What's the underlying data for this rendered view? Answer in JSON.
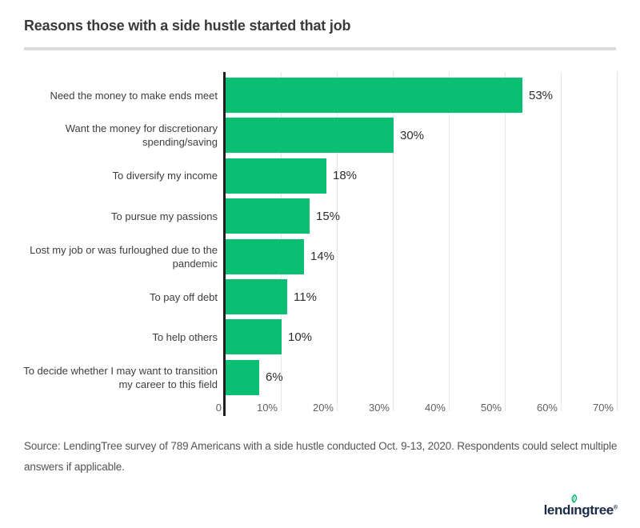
{
  "header": {
    "title": "Reasons those with a side hustle started that job"
  },
  "chart_data": {
    "type": "bar",
    "orientation": "horizontal",
    "title": "Reasons those with a side hustle started that job",
    "categories": [
      "Need the money to make ends meet",
      "Want the money for discretionary spending/saving",
      "To diversify my income",
      "To pursue my passions",
      "Lost my job or was furloughed due to the pandemic",
      "To pay off debt",
      "To help others",
      "To decide whether I may want to transition my career to this field"
    ],
    "values": [
      53,
      30,
      18,
      15,
      14,
      11,
      10,
      6
    ],
    "value_labels": [
      "53%",
      "30%",
      "18%",
      "15%",
      "14%",
      "11%",
      "10%",
      "6%"
    ],
    "xlabel": "",
    "ylabel": "",
    "x_axis": {
      "max": 70,
      "grid": true,
      "ticks": [
        {
          "v": 0,
          "label": "0"
        },
        {
          "v": 10,
          "label": "10%"
        },
        {
          "v": 20,
          "label": "20%"
        },
        {
          "v": 30,
          "label": "30%"
        },
        {
          "v": 40,
          "label": "40%"
        },
        {
          "v": 50,
          "label": "50%"
        },
        {
          "v": 60,
          "label": "60%"
        },
        {
          "v": 70,
          "label": "70%"
        }
      ]
    },
    "bar_color": "#0abf73",
    "legend": "none"
  },
  "footer": {
    "source_text": "Source: LendingTree survey of 789 Americans with a side hustle conducted Oct. 9-13, 2020. Respondents could select multiple answers if applicable.",
    "logo": {
      "pre": "lend",
      "i": "ı",
      "post": "ngtree",
      "mark": "®",
      "leaf_icon": "leaf-icon",
      "leaf_color": "#00b86c",
      "text_color": "#1a2b49"
    }
  },
  "colors": {
    "bar_green": "#0abf73",
    "axis_line": "#1f1f1f",
    "gridline": "#e6e6e6",
    "divider": "#dcdcdc",
    "title_text": "#3a3a3a",
    "category_text": "#3d3d3d",
    "tick_text": "#5f5f5f",
    "source_text": "#545454",
    "logo_navy": "#1a2b49"
  }
}
